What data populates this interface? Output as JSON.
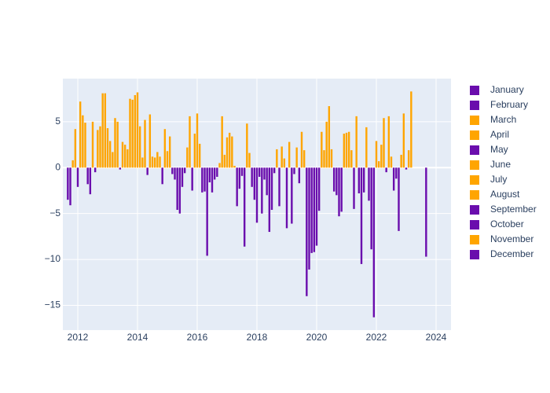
{
  "chart_data": {
    "type": "bar",
    "xlim": [
      2011.5,
      2024.5
    ],
    "xticks": [
      2012,
      2014,
      2016,
      2018,
      2020,
      2022,
      2024
    ],
    "ylim": [
      -17.7,
      9.7
    ],
    "yticks": [
      {
        "value": -15,
        "label": "−15"
      },
      {
        "value": -10,
        "label": "−10"
      },
      {
        "value": -5,
        "label": "−5"
      },
      0,
      5
    ],
    "grid": true,
    "legend": "right",
    "positive_color": "#FFA500",
    "negative_color": "#6A0DAD",
    "series": [
      {
        "name": "January",
        "color": "#6A0DAD",
        "x": [
          2012,
          2013,
          2014,
          2015,
          2016,
          2017,
          2018,
          2019,
          2020,
          2021,
          2022,
          2023
        ],
        "values": [
          -2.1,
          4.3,
          8.2,
          1.8,
          5.9,
          3.3,
          -6.0,
          -6.6,
          -8.5,
          3.8,
          2.9,
          -0.2
        ]
      },
      {
        "name": "February",
        "color": "#6A0DAD",
        "x": [
          2012,
          2013,
          2014,
          2015,
          2016,
          2017,
          2018,
          2019,
          2020,
          2021,
          2022,
          2023
        ],
        "values": [
          7.2,
          2.9,
          4.5,
          3.4,
          2.6,
          3.8,
          -1.0,
          2.8,
          -4.7,
          3.9,
          0.7,
          1.9
        ]
      },
      {
        "name": "March",
        "color": "#FFA500",
        "x": [
          2012,
          2013,
          2014,
          2015,
          2016,
          2017,
          2018,
          2019,
          2020,
          2021,
          2022,
          2023
        ],
        "values": [
          5.7,
          1.7,
          1.1,
          -0.7,
          -2.7,
          3.4,
          -5.0,
          -6.1,
          3.9,
          1.9,
          2.5,
          8.3
        ]
      },
      {
        "name": "April",
        "color": "#FFA500",
        "x": [
          2012,
          2013,
          2014,
          2015,
          2016,
          2017,
          2018,
          2019,
          2020,
          2021,
          2022
        ],
        "values": [
          4.9,
          5.4,
          5.2,
          -1.3,
          -2.6,
          0.2,
          -1.3,
          -0.7,
          1.9,
          -4.5,
          5.4
        ]
      },
      {
        "name": "May",
        "color": "#6A0DAD",
        "x": [
          2012,
          2013,
          2014,
          2015,
          2016,
          2017,
          2018,
          2019,
          2020,
          2021,
          2022
        ],
        "values": [
          -1.8,
          5.0,
          -0.8,
          -4.6,
          -9.6,
          -4.2,
          -3.0,
          2.2,
          5.0,
          5.6,
          -0.5
        ]
      },
      {
        "name": "June",
        "color": "#FFA500",
        "x": [
          2012,
          2013,
          2014,
          2015,
          2016,
          2017,
          2018,
          2019,
          2020,
          2021,
          2022
        ],
        "values": [
          -2.9,
          -0.2,
          5.8,
          -5.0,
          -1.6,
          -2.3,
          -7.0,
          -1.7,
          6.7,
          -2.8,
          5.6
        ]
      },
      {
        "name": "July",
        "color": "#FFA500",
        "x": [
          2012,
          2013,
          2014,
          2015,
          2016,
          2017,
          2018,
          2019,
          2020,
          2021,
          2022
        ],
        "values": [
          5.0,
          2.8,
          1.2,
          -2.1,
          -2.7,
          -0.9,
          -4.6,
          3.9,
          2.0,
          -10.5,
          1.2
        ]
      },
      {
        "name": "August",
        "color": "#FFA500",
        "x": [
          2012,
          2013,
          2014,
          2015,
          2016,
          2017,
          2018,
          2019,
          2020,
          2021,
          2022
        ],
        "values": [
          -0.5,
          2.5,
          1.1,
          -0.6,
          -1.3,
          -8.6,
          -0.6,
          1.9,
          -2.6,
          -2.7,
          -2.5
        ]
      },
      {
        "name": "September",
        "color": "#6A0DAD",
        "x": [
          2011,
          2012,
          2013,
          2014,
          2015,
          2016,
          2017,
          2018,
          2019,
          2020,
          2021,
          2022,
          2023
        ],
        "values": [
          -3.5,
          4.1,
          2.0,
          1.7,
          2.2,
          -1.0,
          4.8,
          2.0,
          -14.0,
          -3.0,
          4.4,
          -1.2,
          -9.7
        ]
      },
      {
        "name": "October",
        "color": "#6A0DAD",
        "x": [
          2011,
          2012,
          2013,
          2014,
          2015,
          2016,
          2017,
          2018,
          2019,
          2020,
          2021,
          2022
        ],
        "values": [
          -4.1,
          4.5,
          7.5,
          1.2,
          5.6,
          0.5,
          1.6,
          -4.2,
          -11.1,
          -5.3,
          -3.6,
          -6.9
        ]
      },
      {
        "name": "November",
        "color": "#FFA500",
        "x": [
          2011,
          2012,
          2013,
          2014,
          2015,
          2016,
          2017,
          2018,
          2019,
          2020,
          2021,
          2022
        ],
        "values": [
          0.8,
          8.1,
          7.4,
          -1.8,
          -2.5,
          5.6,
          -2.1,
          2.3,
          -9.3,
          -4.8,
          -8.9,
          1.4
        ]
      },
      {
        "name": "December",
        "color": "#6A0DAD",
        "x": [
          2011,
          2012,
          2013,
          2014,
          2015,
          2016,
          2017,
          2018,
          2019,
          2020,
          2021,
          2022
        ],
        "values": [
          4.2,
          8.1,
          7.9,
          4.2,
          3.7,
          1.4,
          -3.5,
          1.0,
          -9.2,
          3.7,
          -16.3,
          5.9
        ]
      }
    ]
  }
}
